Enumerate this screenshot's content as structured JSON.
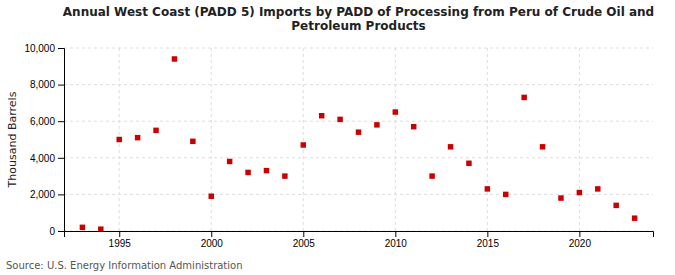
{
  "chart_data": {
    "type": "scatter",
    "title": "Annual West Coast (PADD 5) Imports by PADD of Processing from Peru of Crude Oil and\nPetroleum Products",
    "ylabel": "Thousand Barrels",
    "source": "Source: U.S. Energy Information Administration",
    "x": [
      1993,
      1994,
      1995,
      1996,
      1997,
      1998,
      1999,
      2000,
      2001,
      2002,
      2003,
      2004,
      2005,
      2006,
      2007,
      2008,
      2009,
      2010,
      2011,
      2012,
      2013,
      2014,
      2015,
      2016,
      2017,
      2018,
      2019,
      2020,
      2021,
      2022,
      2023
    ],
    "values": [
      200,
      100,
      5000,
      5100,
      5500,
      9400,
      4900,
      1900,
      3800,
      3200,
      3300,
      3000,
      4700,
      6300,
      6100,
      5400,
      5800,
      6500,
      5700,
      3000,
      4600,
      3700,
      2300,
      2000,
      7300,
      4600,
      1800,
      2100,
      2300,
      1400,
      700
    ],
    "color": "#cc0000",
    "marker": "square",
    "xlim": [
      1992,
      2024
    ],
    "ylim": [
      0,
      10000
    ],
    "xticks": [
      1995,
      2000,
      2005,
      2010,
      2015,
      2020
    ],
    "yticks": [
      0,
      {
        "value": 2000,
        "label": "2,000"
      },
      {
        "value": 4000,
        "label": "4,000"
      },
      {
        "value": 6000,
        "label": "6,000"
      },
      {
        "value": 8000,
        "label": "8,000"
      },
      {
        "value": 10000,
        "label": "10,000"
      }
    ],
    "grid": true
  }
}
